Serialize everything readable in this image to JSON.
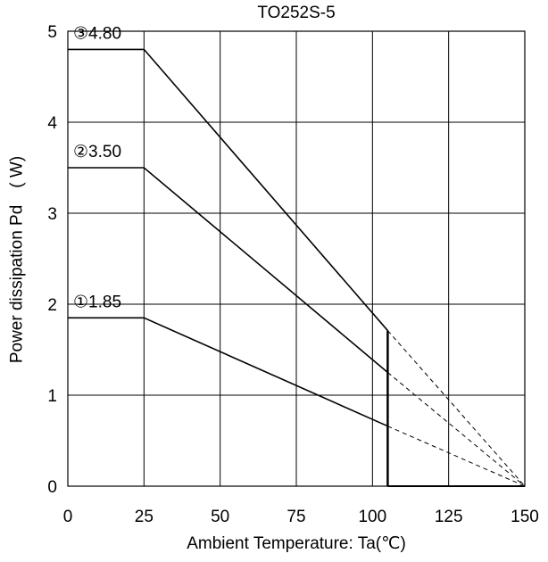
{
  "chart_data": {
    "type": "line",
    "title": "TO252S-5",
    "xlabel": "Ambient Temperature: Ta(℃)",
    "ylabel": "Power dissipation Pd　( W)",
    "xlim": [
      0,
      150
    ],
    "ylim": [
      0,
      5
    ],
    "xticks": [
      0,
      25,
      50,
      75,
      100,
      125,
      150
    ],
    "yticks": [
      0,
      1,
      2,
      3,
      4,
      5
    ],
    "grid": true,
    "series": [
      {
        "name": "①",
        "label": "①1.85",
        "x": [
          0,
          25,
          105
        ],
        "y": [
          1.85,
          1.85,
          0.66
        ],
        "extrapolated_to": [
          150,
          0
        ]
      },
      {
        "name": "②",
        "label": "②3.50",
        "x": [
          0,
          25,
          105
        ],
        "y": [
          3.5,
          3.5,
          1.25
        ],
        "extrapolated_to": [
          150,
          0
        ]
      },
      {
        "name": "③",
        "label": "③4.80",
        "x": [
          0,
          25,
          105
        ],
        "y": [
          4.8,
          4.8,
          1.71
        ],
        "extrapolated_to": [
          150,
          0
        ]
      }
    ],
    "cutoff": {
      "x": 105,
      "y_top": 1.71
    }
  }
}
